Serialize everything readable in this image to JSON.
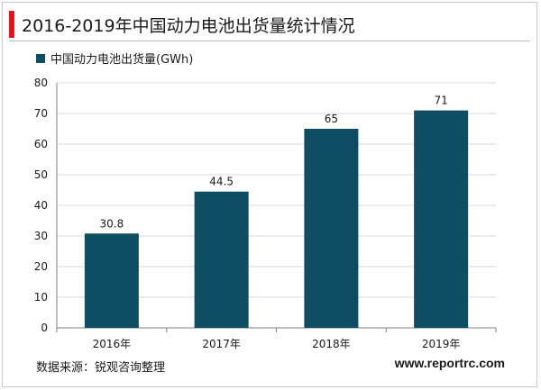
{
  "header": {
    "title": "2016-2019年中国动力电池出货量统计情况"
  },
  "colors": {
    "accent": "#e0151b",
    "bar": "#0f4e62",
    "grid": "#d9d9d9"
  },
  "chart_data": {
    "type": "bar",
    "title": "",
    "xlabel": "",
    "ylabel": "",
    "categories": [
      "2016年",
      "2017年",
      "2018年",
      "2019年"
    ],
    "series": [
      {
        "name": "中国动力电池出货量(GWh)",
        "values": [
          30.8,
          44.5,
          65,
          71
        ]
      }
    ],
    "data_labels": [
      "30.8",
      "44.5",
      "65",
      "71"
    ],
    "ylim": [
      0,
      80
    ],
    "yticks": [
      0,
      10,
      20,
      30,
      40,
      50,
      60,
      70,
      80
    ],
    "grid": true,
    "legend_position": "top-left"
  },
  "footer": {
    "source": "数据来源：锐观咨询整理",
    "website": "www.reportrc.com"
  }
}
